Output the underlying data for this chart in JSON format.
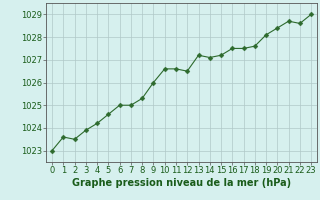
{
  "x": [
    0,
    1,
    2,
    3,
    4,
    5,
    6,
    7,
    8,
    9,
    10,
    11,
    12,
    13,
    14,
    15,
    16,
    17,
    18,
    19,
    20,
    21,
    22,
    23
  ],
  "y": [
    1023.0,
    1023.6,
    1023.5,
    1023.9,
    1024.2,
    1024.6,
    1025.0,
    1025.0,
    1025.3,
    1026.0,
    1026.6,
    1026.6,
    1026.5,
    1027.2,
    1027.1,
    1027.2,
    1027.5,
    1027.5,
    1027.6,
    1028.1,
    1028.4,
    1028.7,
    1028.6,
    1029.0
  ],
  "line_color": "#2d6a2d",
  "marker": "D",
  "markersize": 2.5,
  "bg_color": "#d6f0ee",
  "grid_color": "#b0c8c8",
  "xlabel": "Graphe pression niveau de la mer (hPa)",
  "xlabel_color": "#1a5c1a",
  "xlabel_fontsize": 7,
  "tick_color": "#1a5c1a",
  "tick_fontsize": 6,
  "ylim": [
    1022.5,
    1029.5
  ],
  "yticks": [
    1023,
    1024,
    1025,
    1026,
    1027,
    1028,
    1029
  ],
  "xlim": [
    -0.5,
    23.5
  ],
  "xticks": [
    0,
    1,
    2,
    3,
    4,
    5,
    6,
    7,
    8,
    9,
    10,
    11,
    12,
    13,
    14,
    15,
    16,
    17,
    18,
    19,
    20,
    21,
    22,
    23
  ]
}
